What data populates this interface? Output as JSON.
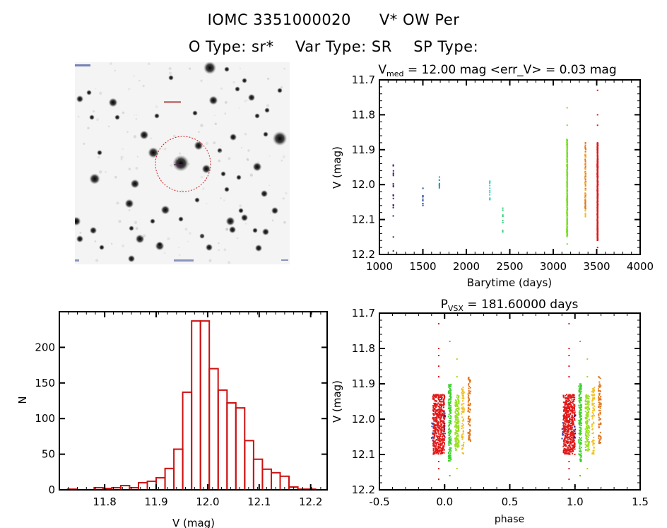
{
  "header": {
    "object_id": "IOMC 3351000020",
    "object_name": "V* OW Per",
    "otype_label": "O Type:",
    "otype_value": "sr*",
    "vartype_label": "Var Type:",
    "vartype_value": "SR",
    "sptype_label": "SP Type:",
    "sptype_value": ""
  },
  "sky_image": {
    "description": "grayscale sky field with red dashed circle around target star",
    "circle_color": "#cc2222"
  },
  "chart_data": [
    {
      "id": "light_curve",
      "type": "scatter",
      "title_main": "V",
      "title_sub": "med",
      "title_rest": " = 12.00 mag <err_V> = 0.03 mag",
      "xlabel": "Barytime (days)",
      "ylabel": "V (mag)",
      "xlim": [
        1000,
        4000
      ],
      "ylim": [
        12.2,
        11.7
      ],
      "y_inverted": true,
      "xticks": [
        "1000",
        "1500",
        "2000",
        "2500",
        "3000",
        "3500",
        "4000"
      ],
      "xtick_values": [
        1000,
        1500,
        2000,
        2500,
        3000,
        3500,
        4000
      ],
      "yticks": [
        "11.7",
        "11.8",
        "11.9",
        "12.0",
        "12.1",
        "12.2"
      ],
      "ytick_values": [
        11.7,
        11.8,
        11.9,
        12.0,
        12.1,
        12.2
      ],
      "series": [
        {
          "name": "season1",
          "color": "#4b1a6e",
          "x": 1160,
          "ymin": 11.94,
          "ymax": 12.09,
          "outliers": [
            12.15,
            12.19
          ],
          "n": 18
        },
        {
          "name": "season2",
          "color": "#2a4aa0",
          "x": 1500,
          "ymin": 12.01,
          "ymax": 12.06,
          "outliers": [],
          "n": 8
        },
        {
          "name": "season3",
          "color": "#2a9ab8",
          "x": 1690,
          "ymin": 11.97,
          "ymax": 12.01,
          "outliers": [],
          "n": 10
        },
        {
          "name": "season4",
          "color": "#30d8c8",
          "x": 2270,
          "ymin": 11.99,
          "ymax": 12.045,
          "outliers": [],
          "n": 14
        },
        {
          "name": "season5",
          "color": "#30d080",
          "x": 2420,
          "ymin": 12.065,
          "ymax": 12.14,
          "outliers": [],
          "n": 8
        },
        {
          "name": "season6",
          "color": "#78e020",
          "x": 3160,
          "ymin": 11.87,
          "ymax": 12.15,
          "outliers": [
            11.78,
            11.83,
            12.17
          ],
          "n": 260
        },
        {
          "name": "season7a",
          "color": "#e87818",
          "x": 3370,
          "ymin": 11.88,
          "ymax": 12.07,
          "outliers": [],
          "n": 90
        },
        {
          "name": "season7b",
          "color": "#f0c020",
          "x": 3370,
          "ymin": 11.91,
          "ymax": 12.1,
          "outliers": [],
          "n": 30
        },
        {
          "name": "season8",
          "color": "#e01818",
          "x": 3510,
          "ymin": 11.88,
          "ymax": 12.16,
          "outliers": [
            11.73,
            11.8,
            11.83,
            12.18
          ],
          "n": 420
        }
      ]
    },
    {
      "id": "histogram",
      "type": "bar",
      "title": "",
      "xlabel": "V (mag)",
      "ylabel": "N",
      "xlim": [
        11.712,
        12.232
      ],
      "ylim": [
        0,
        250
      ],
      "xticks": [
        "11.8",
        "11.9",
        "12.0",
        "12.1",
        "12.2"
      ],
      "xtick_values": [
        11.8,
        11.9,
        12.0,
        12.1,
        12.2
      ],
      "yticks": [
        "0",
        "50",
        "100",
        "150",
        "200"
      ],
      "ytick_values": [
        0,
        50,
        100,
        150,
        200
      ],
      "bar_color": "#cc1111",
      "bin_start": 11.728,
      "bin_width": 0.0172,
      "values": [
        1,
        0,
        0,
        3,
        2,
        3,
        6,
        3,
        10,
        12,
        17,
        30,
        57,
        137,
        237,
        237,
        170,
        140,
        122,
        115,
        69,
        43,
        29,
        24,
        19,
        4,
        1,
        1,
        0
      ]
    },
    {
      "id": "phase_plot",
      "type": "scatter",
      "title_main": "P",
      "title_sub": "VSX",
      "title_rest": " = 181.60000 days",
      "xlabel": "phase",
      "ylabel": "V (mag)",
      "xlim": [
        -0.5,
        1.5
      ],
      "ylim": [
        12.2,
        11.7
      ],
      "y_inverted": true,
      "xticks": [
        "-0.5",
        "0.0",
        "0.5",
        "1.0",
        "1.5"
      ],
      "xtick_values": [
        -0.5,
        0.0,
        0.5,
        1.0,
        1.5
      ],
      "yticks": [
        "11.7",
        "11.8",
        "11.9",
        "12.0",
        "12.1",
        "12.2"
      ],
      "ytick_values": [
        11.7,
        11.8,
        11.9,
        12.0,
        12.1,
        12.2
      ],
      "period_days": 181.6,
      "series": [
        {
          "name": "blue",
          "color": "#2a3aa0",
          "phase_min": -0.1,
          "phase_max": -0.09,
          "ymin": 12.01,
          "ymax": 12.06,
          "n": 8
        },
        {
          "name": "red",
          "color": "#e01818",
          "phase_min": -0.09,
          "phase_max": 0.0,
          "ymin": 11.93,
          "ymax": 12.1,
          "outliers": [
            11.73,
            11.8,
            11.82,
            11.85,
            11.88,
            12.12,
            12.14,
            12.17
          ],
          "n": 500
        },
        {
          "name": "purple",
          "color": "#4b1a6e",
          "phase_min": -0.005,
          "phase_max": 0.005,
          "ymin": 11.97,
          "ymax": 12.06,
          "outliers": [
            12.19
          ],
          "n": 10
        },
        {
          "name": "green",
          "color": "#40d030",
          "phase_min": 0.03,
          "phase_max": 0.05,
          "ymin": 11.9,
          "ymax": 12.12,
          "outliers": [
            11.78,
            12.16
          ],
          "n": 160
        },
        {
          "name": "yellowgreen",
          "color": "#98e020",
          "phase_min": 0.08,
          "phase_max": 0.11,
          "ymin": 11.93,
          "ymax": 12.09,
          "outliers": [
            11.83,
            11.88,
            12.14
          ],
          "n": 150
        },
        {
          "name": "yellow",
          "color": "#f0c020",
          "phase_min": 0.13,
          "phase_max": 0.15,
          "ymin": 11.91,
          "ymax": 12.1,
          "n": 70
        },
        {
          "name": "orange",
          "color": "#e07820",
          "phase_min": 0.18,
          "phase_max": 0.2,
          "ymin": 11.88,
          "ymax": 12.07,
          "n": 80
        }
      ]
    }
  ]
}
